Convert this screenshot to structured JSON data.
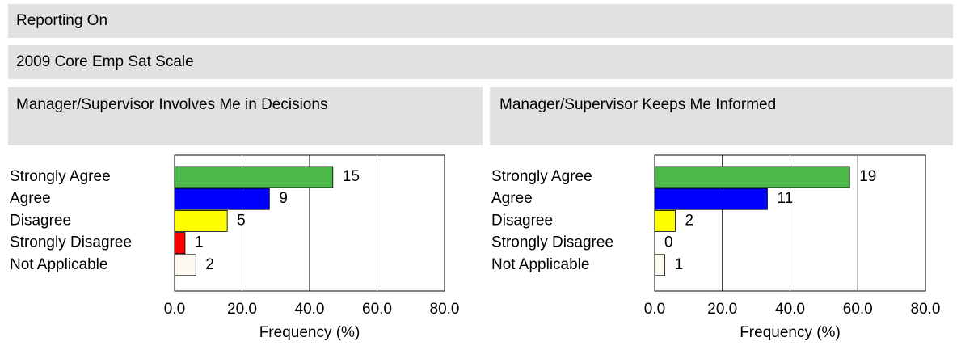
{
  "header": {
    "title": "Reporting On",
    "subtitle": "2009 Core Emp Sat Scale"
  },
  "chart_data": [
    {
      "type": "bar",
      "orientation": "horizontal",
      "title": "Manager/Supervisor Involves Me in Decisions",
      "categories": [
        "Strongly Agree",
        "Agree",
        "Disagree",
        "Strongly Disagree",
        "Not Applicable"
      ],
      "values": [
        46.9,
        28.1,
        15.6,
        3.1,
        6.3
      ],
      "counts": [
        15,
        9,
        5,
        1,
        2
      ],
      "colors": [
        "#4cb848",
        "#0000ff",
        "#ffff00",
        "#ff0000",
        "#fffaf0"
      ],
      "xlabel": "Frequency (%)",
      "xlim": [
        0,
        80
      ],
      "xticks": [
        {
          "value": 0,
          "label": "0.0"
        },
        {
          "value": 20,
          "label": "20.0"
        },
        {
          "value": 40,
          "label": "40.0"
        },
        {
          "value": 60,
          "label": "60.0"
        },
        {
          "value": 80,
          "label": "80.0"
        }
      ],
      "grid": true
    },
    {
      "type": "bar",
      "orientation": "horizontal",
      "title": "Manager/Supervisor Keeps Me Informed",
      "categories": [
        "Strongly Agree",
        "Agree",
        "Disagree",
        "Strongly Disagree",
        "Not Applicable"
      ],
      "values": [
        57.6,
        33.3,
        6.1,
        0,
        3.0
      ],
      "counts": [
        19,
        11,
        2,
        0,
        1
      ],
      "colors": [
        "#4cb848",
        "#0000ff",
        "#ffff00",
        "#ff0000",
        "#fffaf0"
      ],
      "xlabel": "Frequency (%)",
      "xlim": [
        0,
        80
      ],
      "xticks": [
        {
          "value": 0,
          "label": "0.0"
        },
        {
          "value": 20,
          "label": "20.0"
        },
        {
          "value": 40,
          "label": "40.0"
        },
        {
          "value": 60,
          "label": "60.0"
        },
        {
          "value": 80,
          "label": "80.0"
        }
      ],
      "grid": true
    }
  ]
}
